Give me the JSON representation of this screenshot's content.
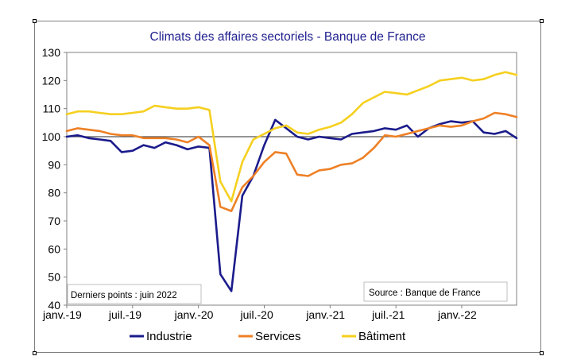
{
  "chart_data": {
    "type": "line",
    "title": "Climats des affaires sectoriels  - Banque de France",
    "ylim": [
      40,
      130
    ],
    "y_ticks": [
      40,
      50,
      60,
      70,
      80,
      90,
      100,
      110,
      120,
      130
    ],
    "x_tick_labels": [
      "janv.-19",
      "juil.-19",
      "janv.-20",
      "juil.-20",
      "janv.-21",
      "juil.-21",
      "janv.-22"
    ],
    "x": [
      "2019-01",
      "2019-02",
      "2019-03",
      "2019-04",
      "2019-05",
      "2019-06",
      "2019-07",
      "2019-08",
      "2019-09",
      "2019-10",
      "2019-11",
      "2019-12",
      "2020-01",
      "2020-02",
      "2020-03",
      "2020-04",
      "2020-05",
      "2020-06",
      "2020-07",
      "2020-08",
      "2020-09",
      "2020-10",
      "2020-11",
      "2020-12",
      "2021-01",
      "2021-02",
      "2021-03",
      "2021-04",
      "2021-05",
      "2021-06",
      "2021-07",
      "2021-08",
      "2021-09",
      "2021-10",
      "2021-11",
      "2021-12",
      "2022-01",
      "2022-02",
      "2022-03",
      "2022-04",
      "2022-05",
      "2022-06"
    ],
    "reference_line": 100,
    "grid": "horizontal",
    "legend_position": "bottom",
    "series": [
      {
        "name": "Industrie",
        "color": "#1b1b8c",
        "values": [
          100,
          100.5,
          99.5,
          99,
          98.5,
          94.5,
          95,
          97,
          96,
          98,
          97,
          95.5,
          96.5,
          96,
          51,
          45,
          79,
          86,
          97,
          106,
          103,
          100,
          99,
          100,
          99.5,
          99,
          101,
          101.5,
          102,
          103,
          102.5,
          104,
          100,
          103,
          104.5,
          105.5,
          105,
          105.5,
          101.5,
          101,
          102,
          99.5
        ]
      },
      {
        "name": "Services",
        "color": "#ee8025",
        "values": [
          102,
          103,
          102.5,
          102,
          101,
          100.5,
          100.5,
          99.5,
          99.5,
          99.5,
          99,
          98,
          100,
          97,
          75,
          73.5,
          82,
          86,
          91,
          94.5,
          94,
          86.5,
          86,
          88,
          88.5,
          90,
          90.5,
          92.5,
          96,
          100.5,
          100,
          101,
          102,
          103,
          104,
          103.5,
          104,
          105.5,
          106.5,
          108.5,
          108,
          107
        ]
      },
      {
        "name": "Bâtiment",
        "color": "#f5d020",
        "values": [
          108,
          109,
          109,
          108.5,
          108,
          108,
          108.5,
          109,
          111,
          110.5,
          110,
          110,
          110.5,
          109.5,
          84,
          77,
          91,
          99,
          101,
          103,
          104,
          101.5,
          101,
          102.5,
          103.5,
          105,
          108,
          112,
          114,
          116,
          115.5,
          115,
          116.5,
          118,
          120,
          120.5,
          121,
          120,
          120.5,
          122,
          123,
          122
        ]
      }
    ]
  },
  "annotations": {
    "left": "Derniers points : juin 2022",
    "right": "Source : Banque de France"
  }
}
